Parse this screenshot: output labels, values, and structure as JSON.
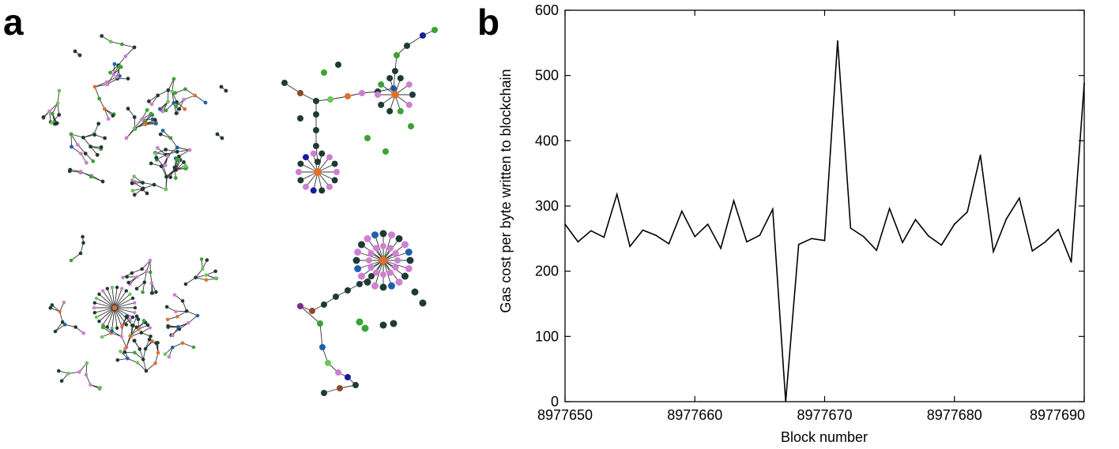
{
  "panels": {
    "a": {
      "label": "a"
    },
    "b": {
      "label": "b"
    }
  },
  "graph_colors": {
    "dark": "#1f3a35",
    "green": "#3aa335",
    "lightgreen": "#6cc75a",
    "pink": "#cf7fd0",
    "orange": "#e0702a",
    "blue": "#1f5fae",
    "navy": "#1a1aa0",
    "brown": "#8b4a2b",
    "purple": "#7a2e8c"
  },
  "chart_data": {
    "type": "line",
    "title": "",
    "xlabel": "Block number",
    "ylabel": "Gas cost per byte written to blockchain",
    "xlim": [
      8977650,
      8977690
    ],
    "ylim": [
      0,
      600
    ],
    "xticks": [
      "8977650",
      "8977660",
      "8977670",
      "8977680",
      "8977690"
    ],
    "yticks": [
      "0",
      "100",
      "200",
      "300",
      "400",
      "500",
      "600"
    ],
    "series": [
      {
        "name": "gas cost",
        "x": [
          8977650,
          8977651,
          8977652,
          8977653,
          8977654,
          8977655,
          8977656,
          8977657,
          8977658,
          8977659,
          8977660,
          8977661,
          8977662,
          8977663,
          8977664,
          8977665,
          8977666,
          8977667,
          8977668,
          8977669,
          8977670,
          8977671,
          8977672,
          8977673,
          8977674,
          8977675,
          8977676,
          8977677,
          8977678,
          8977679,
          8977680,
          8977681,
          8977682,
          8977683,
          8977684,
          8977685,
          8977686,
          8977687,
          8977688,
          8977689,
          8977690
        ],
        "values": [
          272,
          245,
          262,
          252,
          318,
          238,
          263,
          255,
          242,
          292,
          253,
          272,
          235,
          308,
          245,
          255,
          295,
          0,
          241,
          250,
          247,
          553,
          266,
          253,
          232,
          296,
          244,
          279,
          254,
          240,
          272,
          291,
          378,
          230,
          280,
          312,
          231,
          245,
          264,
          214,
          488
        ]
      }
    ]
  }
}
